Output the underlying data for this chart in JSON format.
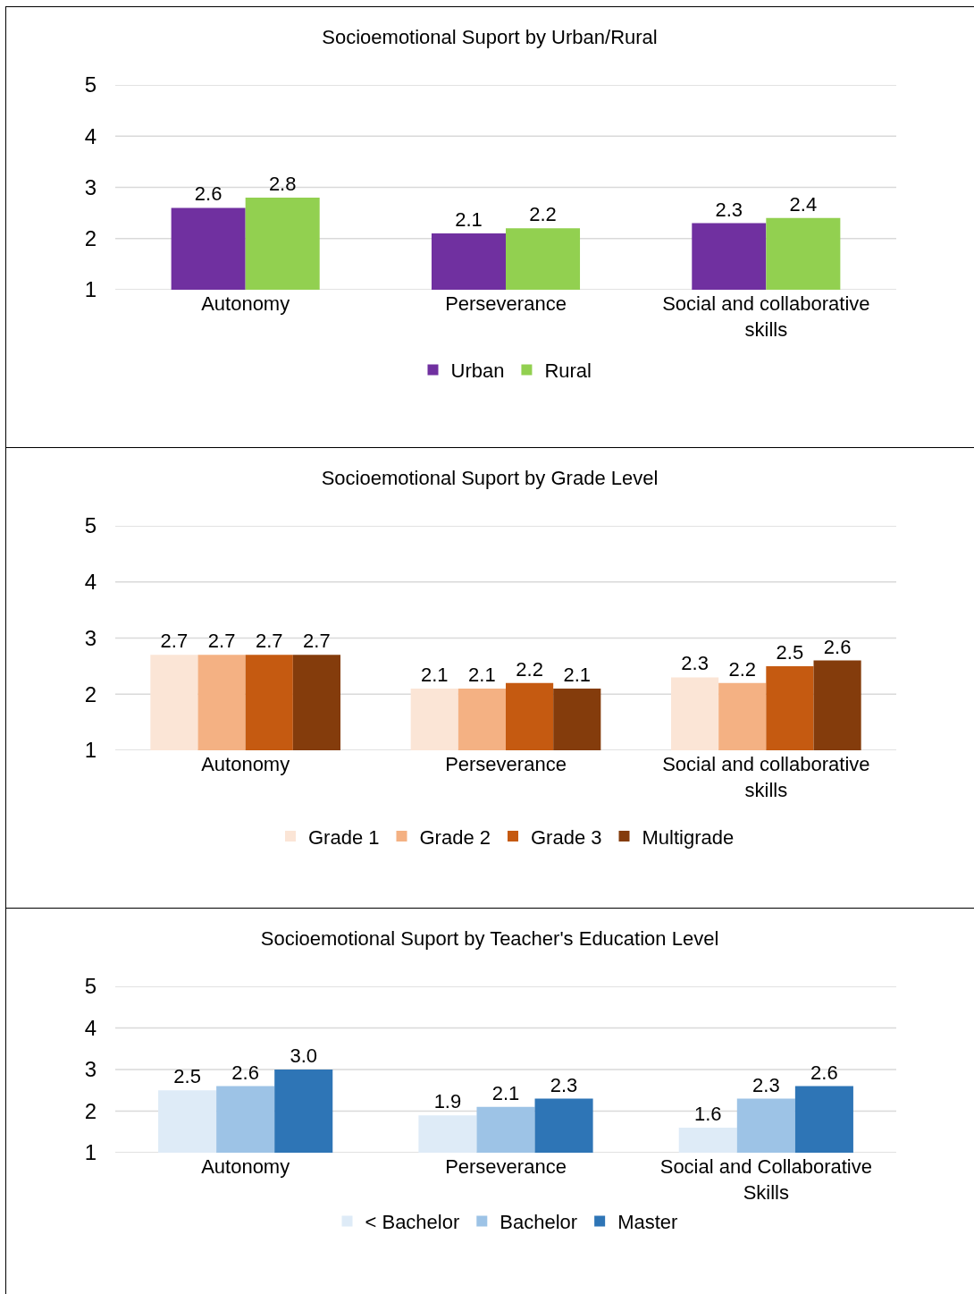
{
  "chart_data": [
    {
      "type": "bar",
      "title": "Socioemotional Suport by Urban/Rural",
      "categories": [
        "Autonomy",
        "Perseverance",
        "Social and collaborative skills"
      ],
      "series": [
        {
          "name": "Urban",
          "color": "#7030a0",
          "values": [
            2.6,
            2.1,
            2.3
          ]
        },
        {
          "name": "Rural",
          "color": "#92d050",
          "values": [
            2.8,
            2.2,
            2.4
          ]
        }
      ],
      "ylim": [
        1,
        5
      ],
      "yticks": [
        1,
        2,
        3,
        4,
        5
      ],
      "grid": "y",
      "legend": "bottom",
      "data_labels": true
    },
    {
      "type": "bar",
      "title": "Socioemotional Suport by Grade Level",
      "categories": [
        "Autonomy",
        "Perseverance",
        "Social and collaborative skills"
      ],
      "series": [
        {
          "name": "Grade 1",
          "color": "#fbe5d6",
          "values": [
            2.7,
            2.1,
            2.3
          ]
        },
        {
          "name": "Grade 2",
          "color": "#f4b183",
          "values": [
            2.7,
            2.1,
            2.2
          ]
        },
        {
          "name": "Grade 3",
          "color": "#c55a11",
          "values": [
            2.7,
            2.2,
            2.5
          ]
        },
        {
          "name": "Multigrade",
          "color": "#843c0c",
          "values": [
            2.7,
            2.1,
            2.6
          ]
        }
      ],
      "ylim": [
        1,
        5
      ],
      "yticks": [
        1,
        2,
        3,
        4,
        5
      ],
      "grid": "y",
      "legend": "bottom",
      "data_labels": true
    },
    {
      "type": "bar",
      "title": "Socioemotional Suport by Teacher's Education Level",
      "categories": [
        "Autonomy",
        "Perseverance",
        "Social and Collaborative Skills"
      ],
      "series": [
        {
          "name": "< Bachelor",
          "color": "#deebf7",
          "values": [
            2.5,
            1.9,
            1.6
          ],
          "value_labels": [
            "2.5",
            "1.9",
            "1.6"
          ]
        },
        {
          "name": "Bachelor",
          "color": "#9dc3e6",
          "values": [
            2.6,
            2.1,
            2.3
          ],
          "value_labels": [
            "2.6",
            "2.1",
            "2.3"
          ]
        },
        {
          "name": "Master",
          "color": "#2e75b6",
          "values": [
            3.0,
            2.3,
            2.6
          ],
          "value_labels": [
            "3.0",
            "2.3",
            "2.6"
          ]
        }
      ],
      "ylim": [
        1,
        5
      ],
      "yticks": [
        1,
        2,
        3,
        4,
        5
      ],
      "grid": "y",
      "legend": "bottom"
    }
  ]
}
